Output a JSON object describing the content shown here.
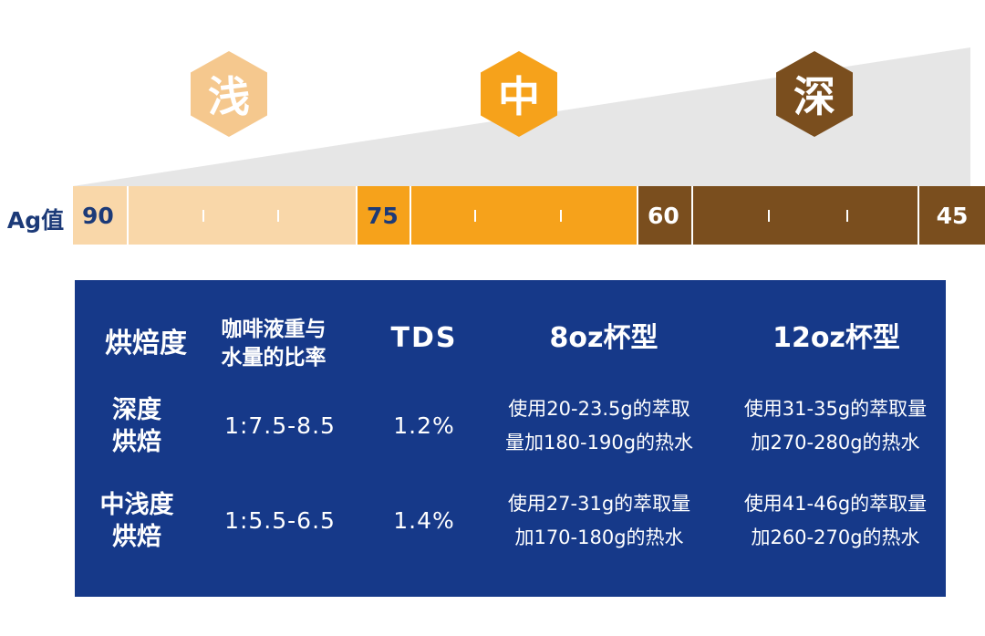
{
  "scale": {
    "ag_label": "Ag值",
    "levels": [
      {
        "glyph": "浅",
        "color": "#f5c88e"
      },
      {
        "glyph": "中",
        "color": "#f6a21b"
      },
      {
        "glyph": "深",
        "color": "#7a4e1e"
      }
    ],
    "segments": [
      {
        "value": "90",
        "color": "#f9d7a9",
        "text_color": "#1c3a78"
      },
      {
        "value": "75",
        "color": "#f6a21b",
        "text_color": "#1c3a78"
      },
      {
        "value": "60",
        "color": "#7a4e1e",
        "text_color": "#ffffff"
      }
    ],
    "end_value": "45",
    "wedge_color": "#e6e6e6"
  },
  "table": {
    "headers": {
      "roast": "烘焙度",
      "ratio_line1": "咖啡液重与",
      "ratio_line2": "水量的比率",
      "tds": "TDS",
      "cup8": "8oz杯型",
      "cup12": "12oz杯型"
    },
    "rows": [
      {
        "roast_line1": "深度",
        "roast_line2": "烘焙",
        "ratio": "1:7.5-8.5",
        "tds": "1.2%",
        "cup8_line1": "使用20-23.5g的萃取",
        "cup8_line2": "量加180-190g的热水",
        "cup12_line1": "使用31-35g的萃取量",
        "cup12_line2": "加270-280g的热水"
      },
      {
        "roast_line1": "中浅度",
        "roast_line2": "烘焙",
        "ratio": "1:5.5-6.5",
        "tds": "1.4%",
        "cup8_line1": "使用27-31g的萃取量",
        "cup8_line2": "加170-180g的热水",
        "cup12_line1": "使用41-46g的萃取量",
        "cup12_line2": "加260-270g的热水"
      }
    ]
  }
}
